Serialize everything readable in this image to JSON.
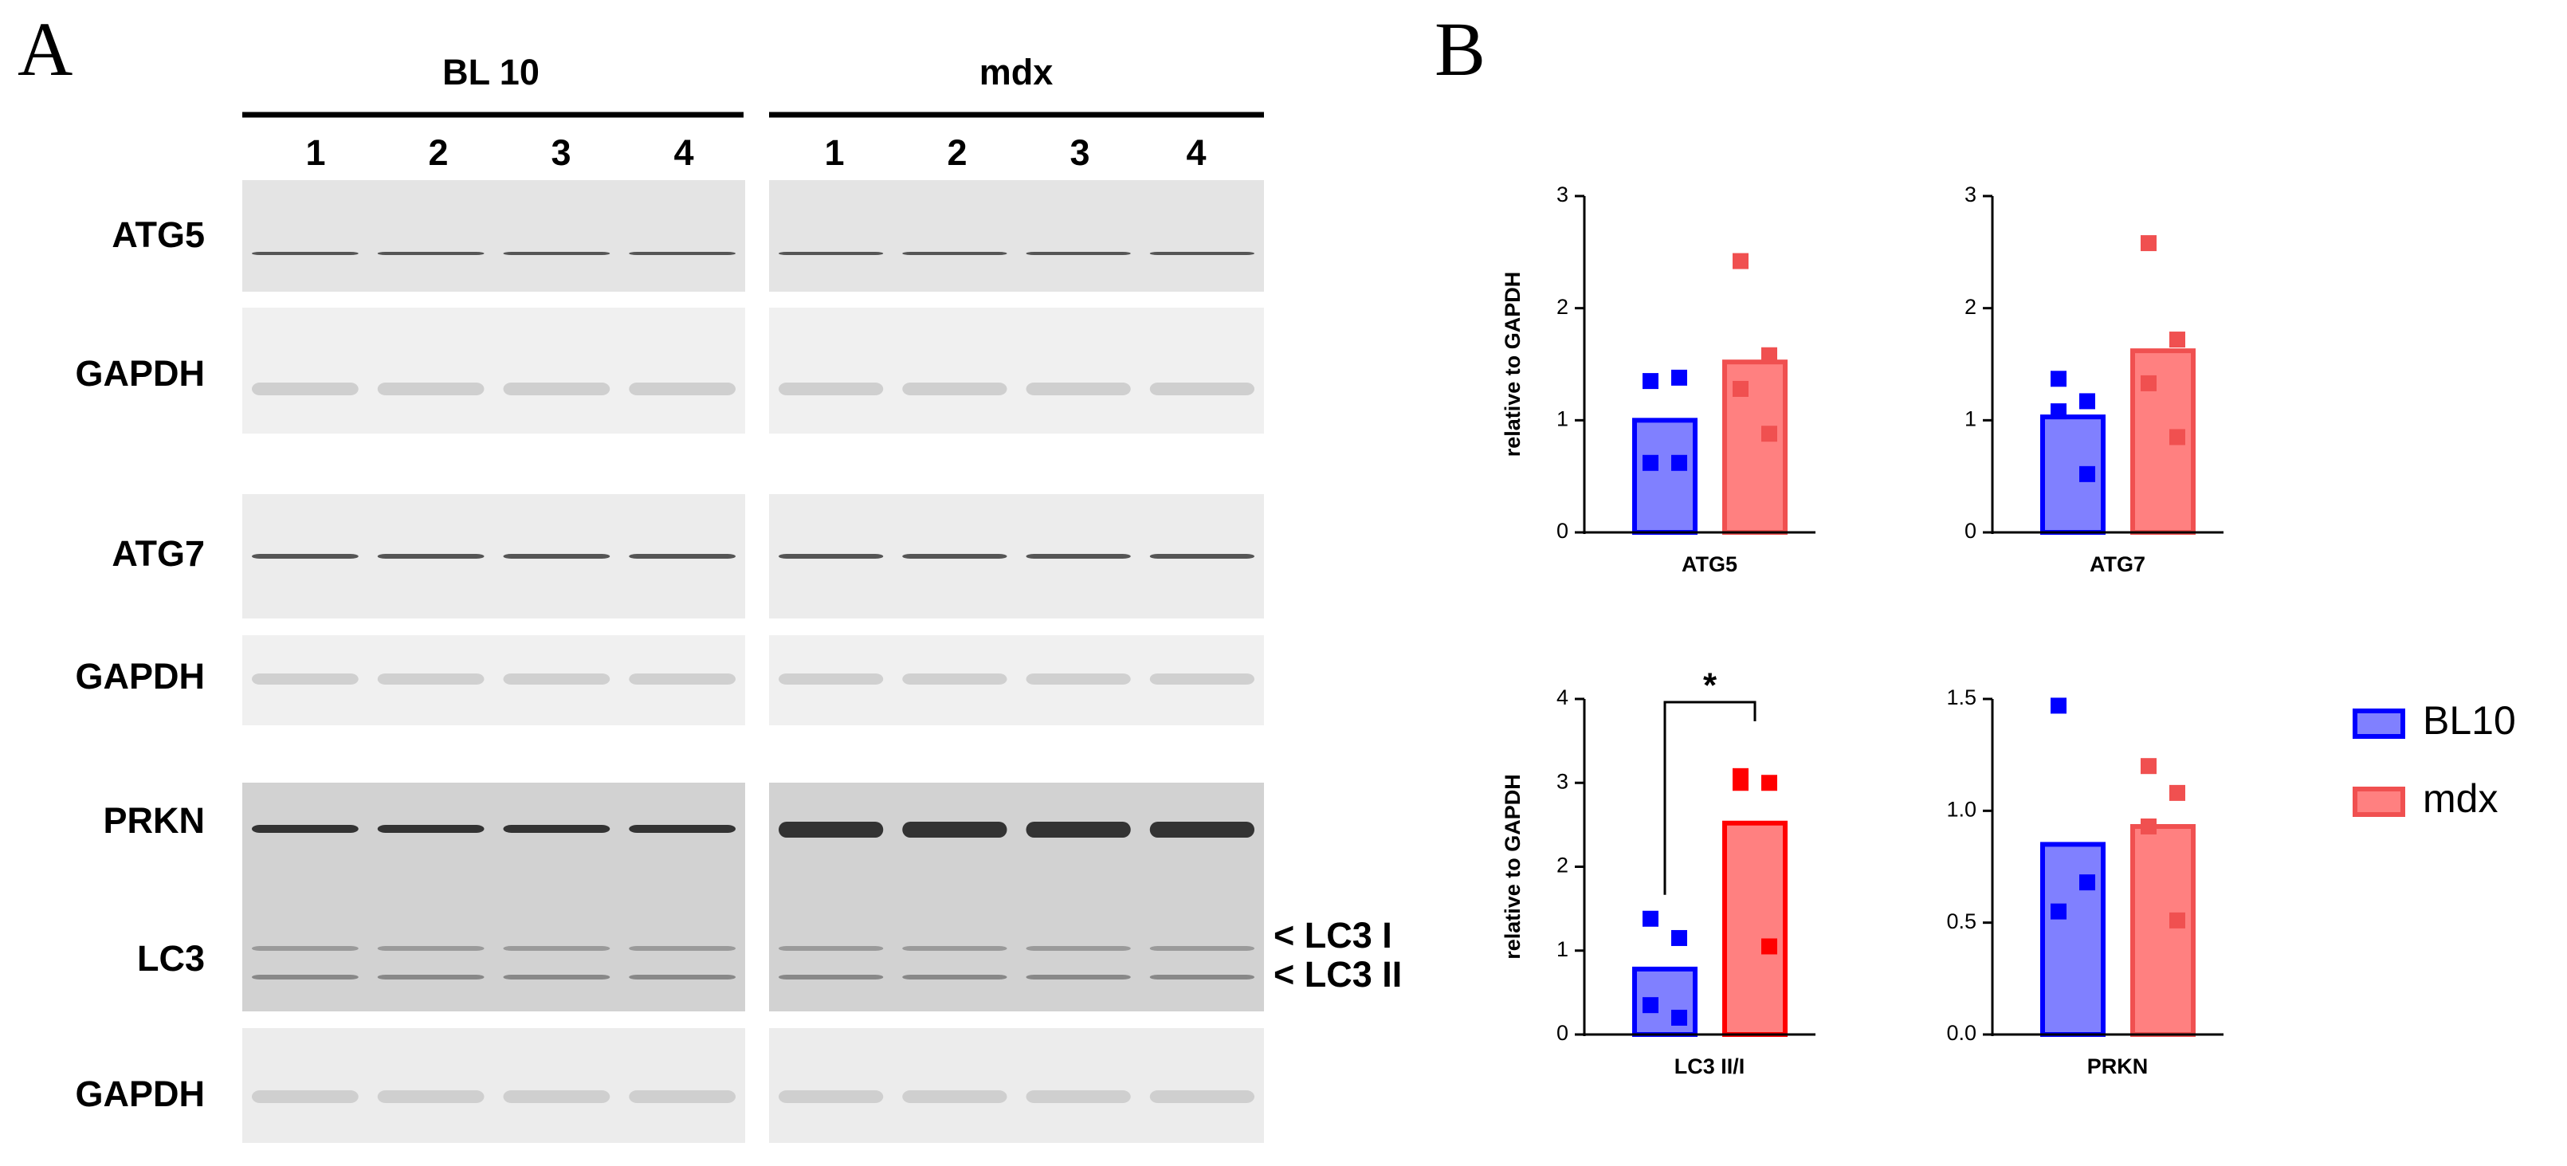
{
  "panel_a": {
    "label": "A",
    "groups": [
      {
        "name": "BL 10",
        "lanes": [
          "1",
          "2",
          "3",
          "4"
        ]
      },
      {
        "name": "mdx",
        "lanes": [
          "1",
          "2",
          "3",
          "4"
        ]
      }
    ],
    "blots": [
      "ATG5",
      "GAPDH",
      "ATG7",
      "GAPDH",
      "PRKN",
      "LC3",
      "GAPDH"
    ],
    "annotations": [
      "< LC3 I",
      "< LC3 II"
    ]
  },
  "panel_b": {
    "label": "B"
  },
  "chart_data": [
    {
      "type": "bar",
      "ylabel": "relative to GAPDH",
      "categories": [
        "ATG5"
      ],
      "ylim": [
        0,
        3
      ],
      "yticks": [
        0,
        1,
        2,
        3
      ],
      "series": [
        {
          "name": "BL10",
          "color": "#0000ff",
          "fill": "#8080ff",
          "values": [
            1.0
          ],
          "points": [
            1.35,
            1.38,
            0.62,
            0.62
          ]
        },
        {
          "name": "mdx",
          "color": "#f05050",
          "fill": "#ff8080",
          "values": [
            1.52
          ],
          "points": [
            2.42,
            1.58,
            1.28,
            0.88
          ]
        }
      ]
    },
    {
      "type": "bar",
      "categories": [
        "ATG7"
      ],
      "ylim": [
        0,
        3
      ],
      "yticks": [
        0,
        1,
        2,
        3
      ],
      "series": [
        {
          "name": "BL10",
          "color": "#0000ff",
          "fill": "#8080ff",
          "values": [
            1.03
          ],
          "points": [
            1.37,
            1.17,
            1.08,
            0.52
          ]
        },
        {
          "name": "mdx",
          "color": "#f05050",
          "fill": "#ff8080",
          "values": [
            1.62
          ],
          "points": [
            2.58,
            1.72,
            1.33,
            0.85
          ]
        }
      ]
    },
    {
      "type": "bar",
      "ylabel": "relative to GAPDH",
      "categories": [
        "LC3 II/I"
      ],
      "ylim": [
        0,
        4
      ],
      "yticks": [
        0,
        1,
        2,
        3,
        4
      ],
      "significance": "*",
      "series": [
        {
          "name": "BL10",
          "color": "#0000ff",
          "fill": "#8080ff",
          "values": [
            0.78
          ],
          "points": [
            1.38,
            1.15,
            0.35,
            0.2
          ]
        },
        {
          "name": "mdx",
          "color": "#ff0000",
          "fill": "#ff8080",
          "values": [
            2.52
          ],
          "points": [
            3.08,
            3.0,
            3.0,
            1.05
          ]
        }
      ]
    },
    {
      "type": "bar",
      "categories": [
        "PRKN"
      ],
      "ylim": [
        0,
        1.5
      ],
      "yticks": [
        {
          "value": 0,
          "label": "0.0"
        },
        0.5,
        {
          "value": 1,
          "label": "1.0"
        },
        1.5
      ],
      "series": [
        {
          "name": "BL10",
          "color": "#0000ff",
          "fill": "#8080ff",
          "values": [
            0.85
          ],
          "points": [
            1.47,
            0.68,
            0.55
          ]
        },
        {
          "name": "mdx",
          "color": "#f05050",
          "fill": "#ff8080",
          "values": [
            0.93
          ],
          "points": [
            1.2,
            1.08,
            0.93,
            0.51
          ]
        }
      ]
    }
  ]
}
